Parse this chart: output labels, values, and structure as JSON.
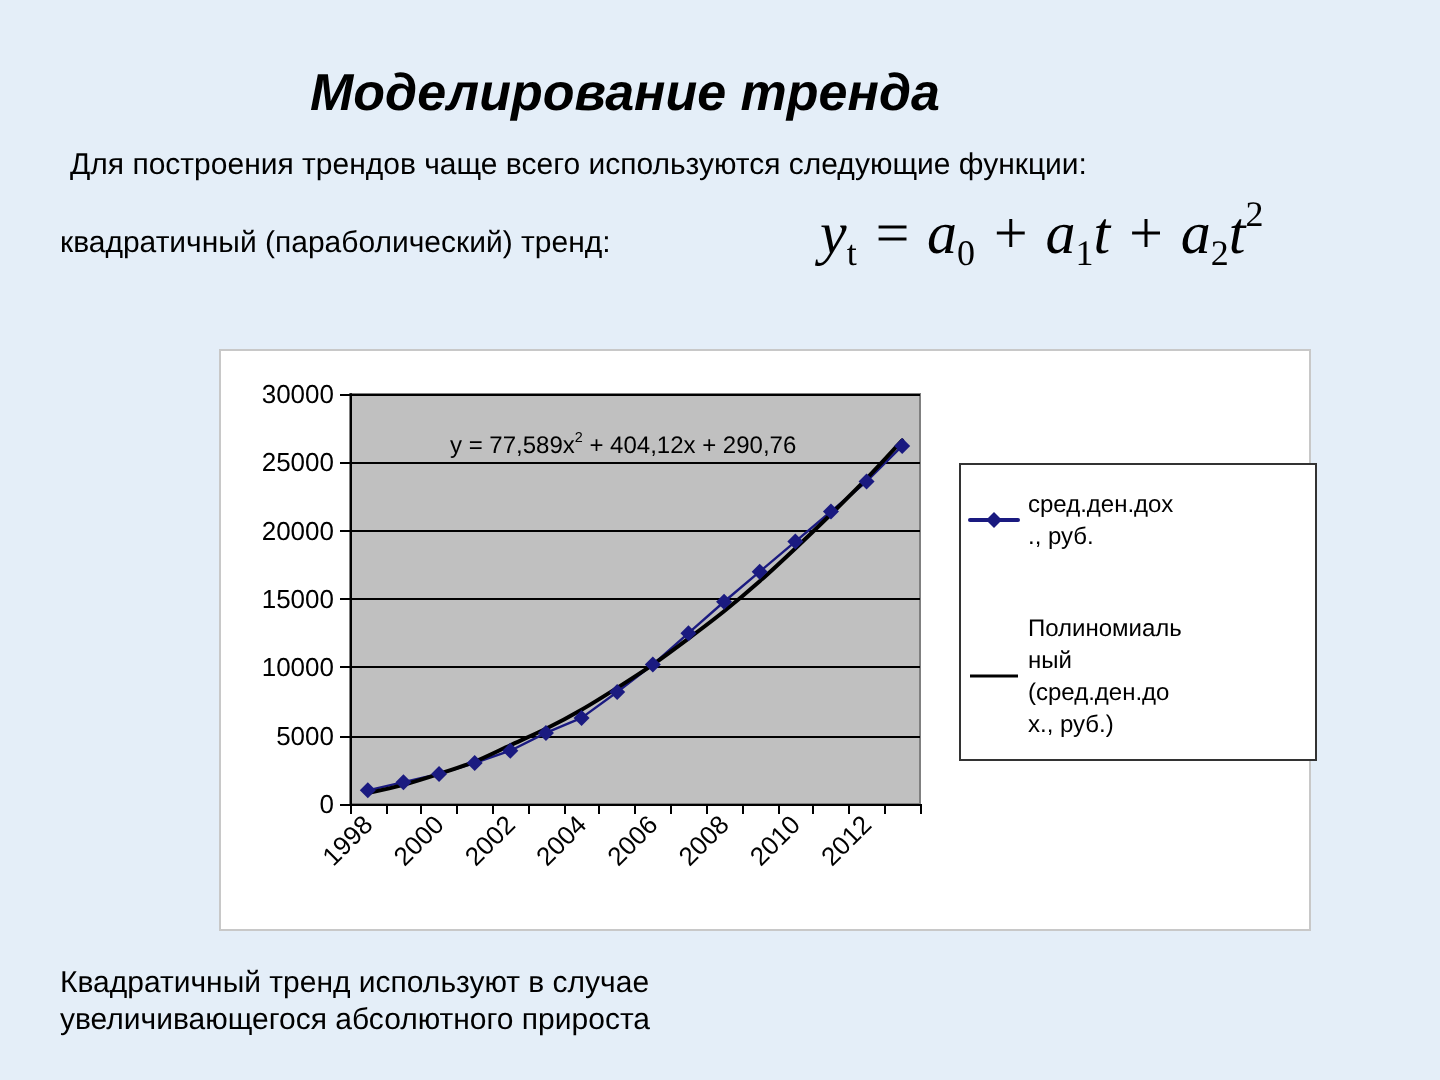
{
  "chart_data": {
    "type": "line",
    "title": "Моделирование тренда",
    "subtitle": "Для построения трендов чаще всего используются следующие функции:",
    "annotations": [
      "квадратичный (параболический) тренд:",
      "y$_{t}$ = a$_{0}$ + a$_{1}$t + a$_{2}$t$^{2}$",
      "y = 77,589x$^{2}$ + 404,12x + 290,76",
      "Квадратичный тренд используют в случае увеличивающегося абсолютного прироста"
    ],
    "categories": [
      "1998",
      null,
      "2000",
      null,
      "2002",
      null,
      "2004",
      null,
      "2006",
      null,
      "2008",
      null,
      "2010",
      null,
      "2012",
      null
    ],
    "series": [
      {
        "name": "сред.ден.дох., руб.",
        "color": "#1a1a80",
        "marker": "diamond",
        "values": [
          1000,
          1600,
          2200,
          3000,
          3900,
          5200,
          6300,
          8200,
          10200,
          12500,
          14800,
          17000,
          19200,
          21400,
          23600,
          26200
        ]
      },
      {
        "name": "Полиномиальный (сред.ден.дох., руб.)",
        "color": "#000000",
        "marker": "none",
        "values": [
          800,
          1400,
          2200,
          3100,
          4300,
          5500,
          6900,
          8500,
          10200,
          12100,
          14100,
          16300,
          18700,
          21200,
          23800,
          26600
        ]
      }
    ],
    "ylim": [
      0,
      30000
    ],
    "yticks": [
      0,
      5000,
      10000,
      15000,
      20000,
      25000,
      30000
    ],
    "grid": "y",
    "legend": "right"
  }
}
